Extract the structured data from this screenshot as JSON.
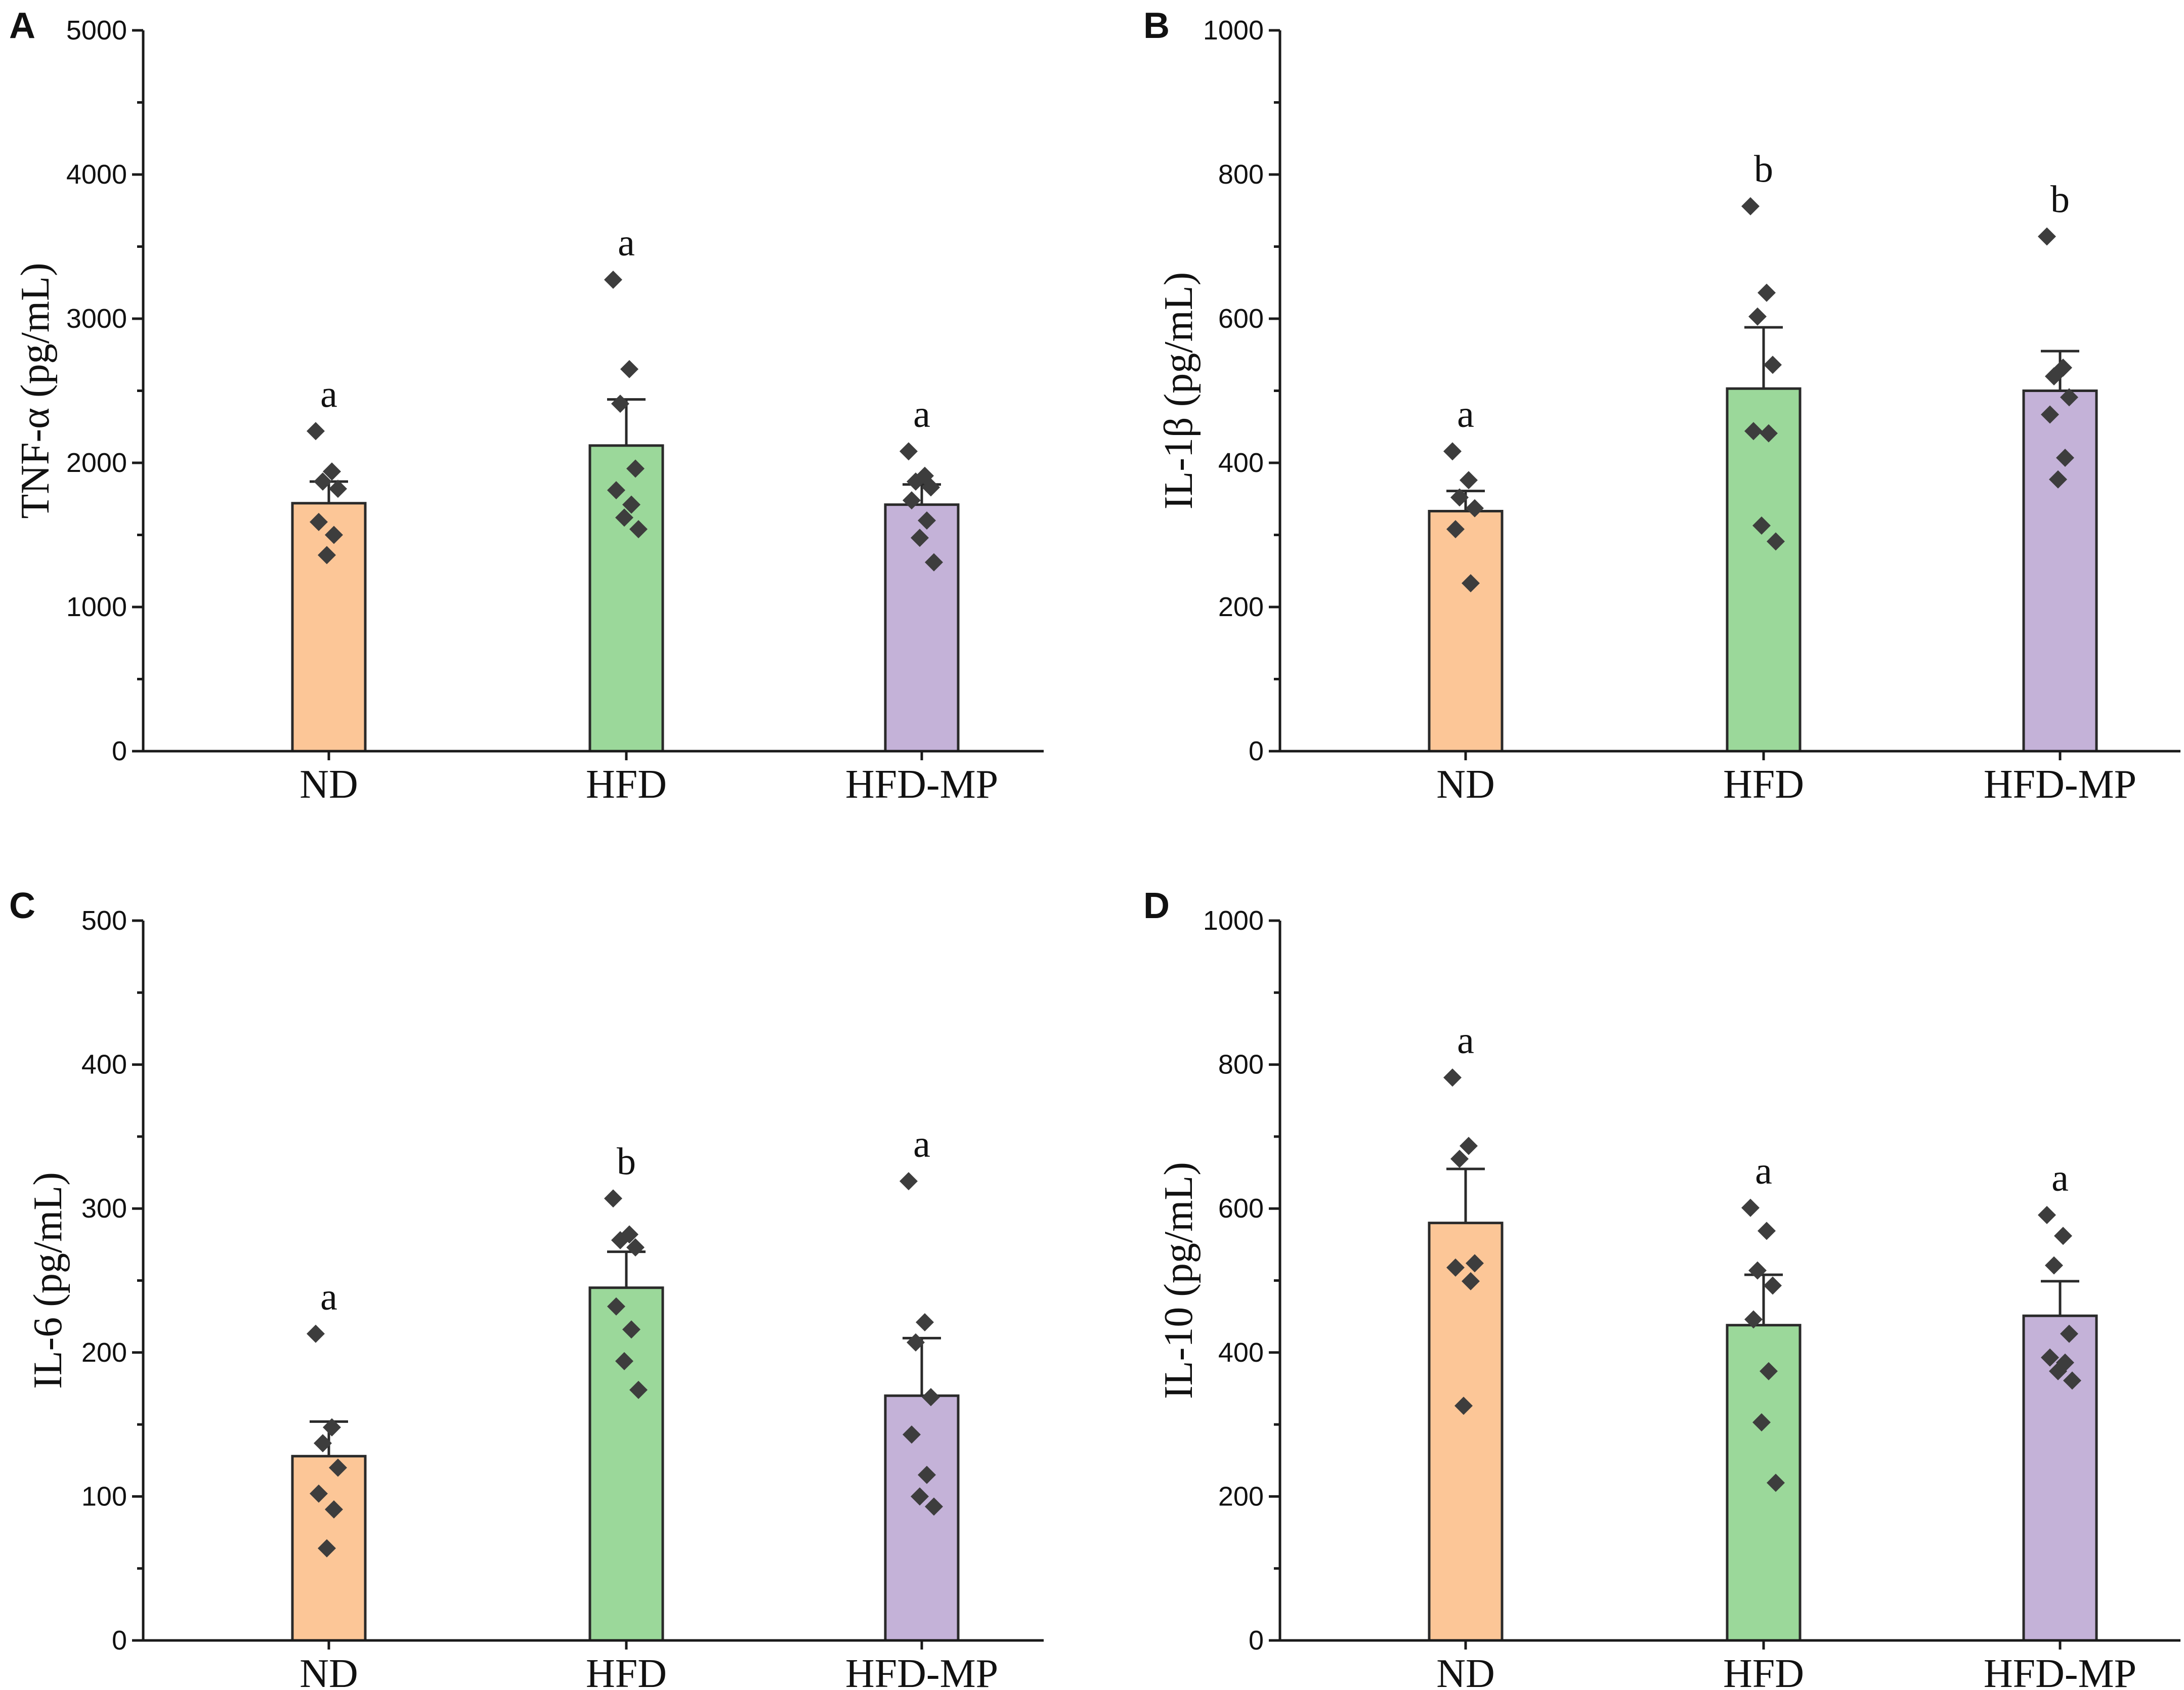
{
  "colors": {
    "ND": "#fcc697",
    "HFD": "#9bd89a",
    "HFD-MP": "#c4b2d8",
    "point": "#3d3d3d"
  },
  "chart_data": [
    {
      "panel": "A",
      "type": "bar",
      "ylabel": "TNF-α (pg/mL)",
      "ylim": [
        0,
        5000
      ],
      "yticks": [
        0,
        1000,
        2000,
        3000,
        4000,
        5000
      ],
      "ytick_labels": [
        "0",
        "1000",
        "2000",
        "3000",
        "4000",
        "5000"
      ],
      "categories": [
        "ND",
        "HFD",
        "HFD-MP"
      ],
      "values": [
        1720,
        2120,
        1710
      ],
      "errors": [
        150,
        320,
        140
      ],
      "letters": [
        "a",
        "a",
        "a"
      ],
      "points": [
        [
          2220,
          1940,
          1870,
          1820,
          1590,
          1500,
          1360
        ],
        [
          3270,
          2650,
          2410,
          1960,
          1810,
          1710,
          1620,
          1540
        ],
        [
          2080,
          1910,
          1870,
          1830,
          1740,
          1600,
          1480,
          1310
        ]
      ]
    },
    {
      "panel": "B",
      "type": "bar",
      "ylabel": "IL-1β (pg/mL)",
      "ylim": [
        0,
        1000
      ],
      "yticks": [
        0,
        200,
        400,
        600,
        800,
        1000
      ],
      "ytick_labels": [
        "0",
        "200",
        "400",
        "600",
        "800",
        "1000"
      ],
      "categories": [
        "ND",
        "HFD",
        "HFD-MP"
      ],
      "values": [
        333,
        503,
        500
      ],
      "errors": [
        28,
        85,
        55
      ],
      "letters": [
        "a",
        "b",
        "b"
      ],
      "points": [
        [
          416,
          376,
          352,
          337,
          308,
          233
        ],
        [
          756,
          636,
          603,
          536,
          444,
          441,
          313,
          291
        ],
        [
          714,
          532,
          520,
          491,
          467,
          407,
          377
        ]
      ]
    },
    {
      "panel": "C",
      "type": "bar",
      "ylabel": "IL-6 (pg/mL)",
      "ylim": [
        0,
        500
      ],
      "yticks": [
        0,
        100,
        200,
        300,
        400,
        500
      ],
      "ytick_labels": [
        "0",
        "100",
        "200",
        "300",
        "400",
        "500"
      ],
      "categories": [
        "ND",
        "HFD",
        "HFD-MP"
      ],
      "values": [
        128,
        245,
        170
      ],
      "errors": [
        24,
        25,
        40
      ],
      "letters": [
        "a",
        "b",
        "a"
      ],
      "points": [
        [
          213,
          148,
          137,
          120,
          102,
          91,
          64
        ],
        [
          307,
          282,
          278,
          273,
          232,
          216,
          194,
          174
        ],
        [
          319,
          221,
          207,
          169,
          143,
          115,
          100,
          93
        ]
      ]
    },
    {
      "panel": "D",
      "type": "bar",
      "ylabel": "IL-10 (pg/mL)",
      "ylim": [
        0,
        1000
      ],
      "yticks": [
        0,
        200,
        400,
        600,
        800,
        1000
      ],
      "ytick_labels": [
        "0",
        "200",
        "400",
        "600",
        "800",
        "1000"
      ],
      "categories": [
        "ND",
        "HFD",
        "HFD-MP"
      ],
      "values": [
        580,
        438,
        451
      ],
      "errors": [
        75,
        70,
        48
      ],
      "letters": [
        "a",
        "a",
        "a"
      ],
      "points": [
        [
          782,
          687,
          669,
          524,
          518,
          499,
          326
        ],
        [
          601,
          569,
          514,
          493,
          446,
          374,
          303,
          219
        ],
        [
          591,
          562,
          521,
          426,
          393,
          386,
          374,
          361
        ]
      ]
    }
  ]
}
